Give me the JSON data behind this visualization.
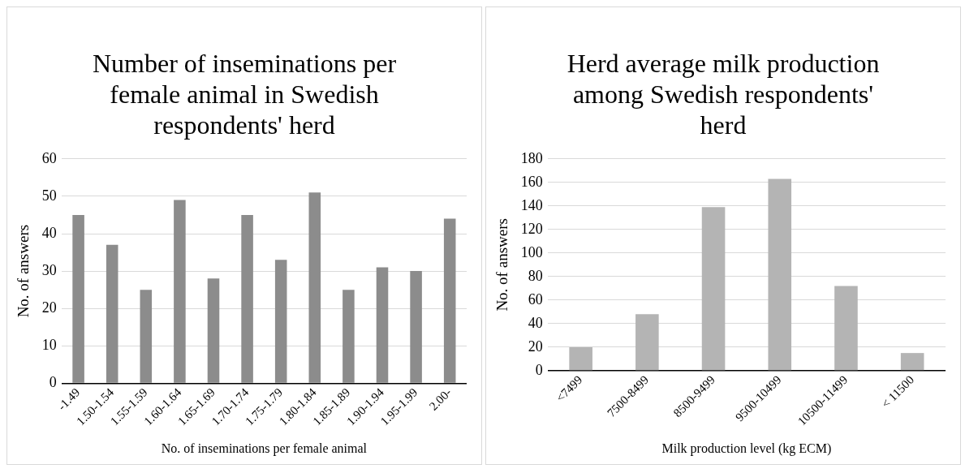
{
  "chart_data": [
    {
      "type": "bar",
      "title": "Number of inseminations per female animal in Swedish respondents' herd",
      "xlabel": "No. of inseminations per female animal",
      "ylabel": "No. of answers",
      "categories": [
        "-1.49",
        "1.50-1.54",
        "1.55-1.59",
        "1.60-1.64",
        "1.65-1.69",
        "1.70-1.74",
        "1.75-1.79",
        "1.80-1.84",
        "1.85-1.89",
        "1.90-1.94",
        "1.95-1.99",
        "2.00-"
      ],
      "values": [
        45,
        37,
        25,
        49,
        28,
        45,
        33,
        51,
        25,
        31,
        30,
        44
      ],
      "color": "#8c8c8c",
      "ylim": [
        0,
        60
      ],
      "yticks": [
        0,
        10,
        20,
        30,
        40,
        50,
        60
      ],
      "grid": "y",
      "legend": false
    },
    {
      "type": "bar",
      "title": "Herd average milk production among Swedish respondents' herd",
      "xlabel": "Milk production level (kg ECM)",
      "ylabel": "No. of answers",
      "categories": [
        "<7499",
        "7500-8499",
        "8500-9499",
        "9500-10499",
        "10500-11499",
        "< 11500"
      ],
      "values": [
        20,
        48,
        139,
        163,
        72,
        15
      ],
      "color": "#b4b4b4",
      "ylim": [
        0,
        180
      ],
      "yticks": [
        0,
        20,
        40,
        60,
        80,
        100,
        120,
        140,
        160,
        180
      ],
      "grid": "y",
      "legend": false
    }
  ]
}
